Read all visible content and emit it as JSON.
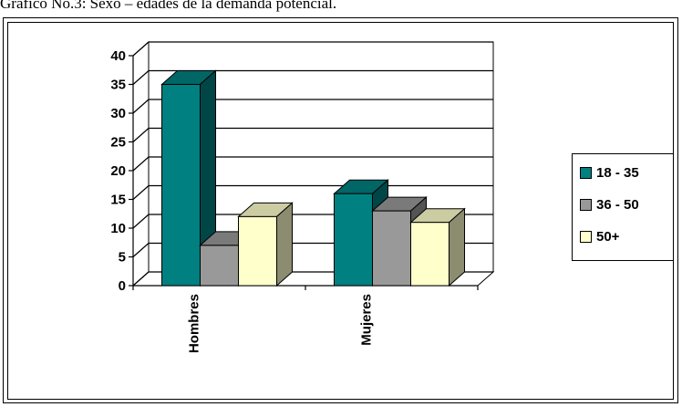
{
  "caption": "Gráfico No.3: Sexo – edades de la demanda potencial.",
  "chart_data": {
    "type": "bar",
    "categories": [
      "Hombres",
      "Mujeres"
    ],
    "series": [
      {
        "name": "18 - 35",
        "values": [
          35,
          16
        ],
        "color": "#008080"
      },
      {
        "name": "36 - 50",
        "values": [
          7,
          13
        ],
        "color": "#999999"
      },
      {
        "name": "50+",
        "values": [
          12,
          11
        ],
        "color": "#FFFFCC"
      }
    ],
    "ylim": [
      0,
      40
    ],
    "yticks": [
      0,
      5,
      10,
      15,
      20,
      25,
      30,
      35,
      40
    ],
    "grid": true,
    "legend_position": "right",
    "three_d": true
  }
}
